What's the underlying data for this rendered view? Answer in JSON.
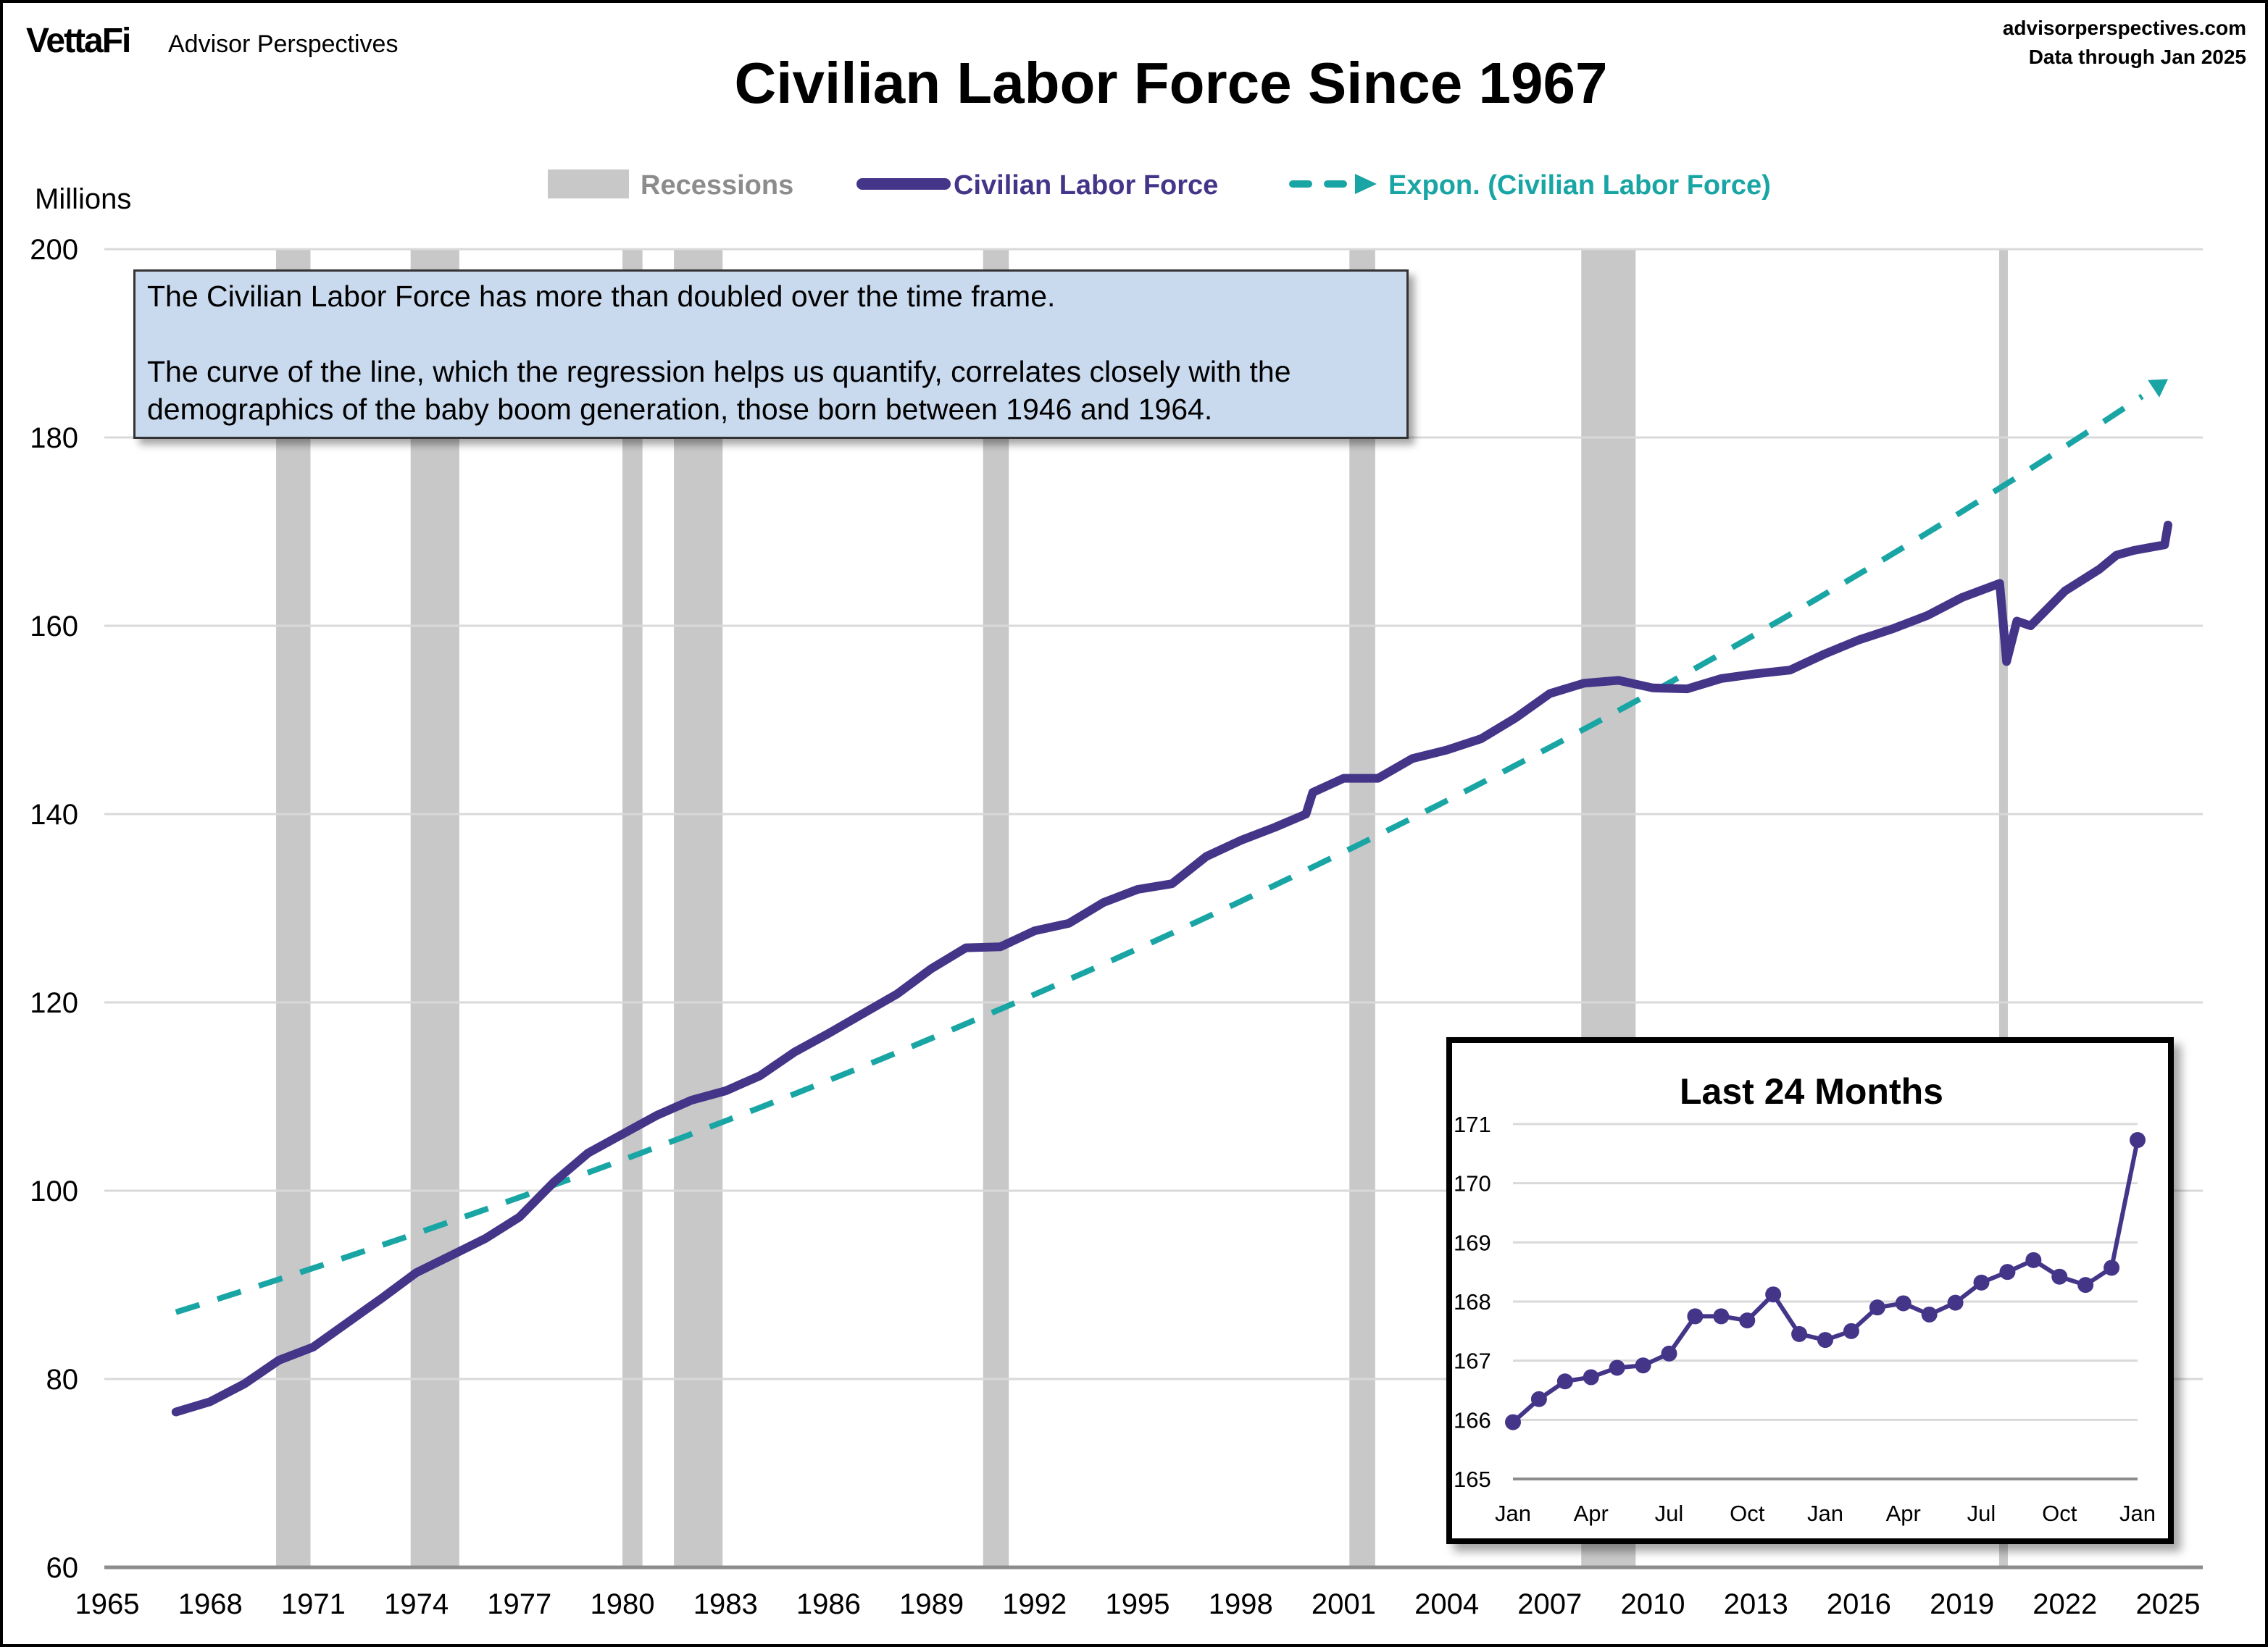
{
  "header": {
    "logo_brand": "VettaFi",
    "logo_sub": "Advisor Perspectives",
    "site": "advisorperspectives.com",
    "data_through": "Data through Jan 2025"
  },
  "annotation": {
    "line1": "The Civilian Labor Force has more than doubled over the time frame.",
    "line2": "The curve of the line, which the regression helps us quantify, correlates closely with the demographics of the baby boom generation, those born between 1946 and 1964."
  },
  "colors": {
    "line": "#453589",
    "trend": "#1aa5a5",
    "recession": "#c8c8c8",
    "grid": "#d9d9d9",
    "axis": "#8c8c8c",
    "note_fill": "#c9d9ee"
  },
  "chart_data": [
    {
      "type": "line",
      "title": "Civilian Labor Force Since 1967",
      "ylabel": "Millions",
      "xlim": [
        1965,
        2025
      ],
      "ylim": [
        60,
        200
      ],
      "yticks": [
        60,
        80,
        100,
        120,
        140,
        160,
        180,
        200
      ],
      "xticks": [
        1965,
        1968,
        1971,
        1974,
        1977,
        1980,
        1983,
        1986,
        1989,
        1992,
        1995,
        1998,
        2001,
        2004,
        2007,
        2010,
        2013,
        2016,
        2019,
        2022,
        2025
      ],
      "grid": true,
      "legend": {
        "placement": "top",
        "entries": [
          "Recessions",
          "Civilian Labor Force",
          "Expon. (Civilian Labor Force)"
        ]
      },
      "recessions": [
        [
          "1969-12",
          "1970-11"
        ],
        [
          "1973-11",
          "1975-03"
        ],
        [
          "1980-01",
          "1980-07"
        ],
        [
          "1981-07",
          "1982-11"
        ],
        [
          "1990-07",
          "1991-03"
        ],
        [
          "2001-03",
          "2001-11"
        ],
        [
          "2007-12",
          "2009-06"
        ],
        [
          "2020-02",
          "2020-04"
        ]
      ],
      "series": [
        {
          "name": "Civilian Labor Force",
          "x": [
            1967,
            1968,
            1969,
            1970,
            1971,
            1972,
            1973,
            1974,
            1975,
            1976,
            1977,
            1978,
            1979,
            1980,
            1981,
            1982,
            1983,
            1984,
            1985,
            1986,
            1987,
            1988,
            1989,
            1990,
            1991,
            1992,
            1993,
            1994,
            1995,
            1996,
            1997,
            1998,
            1999,
            1999.9,
            2000.1,
            2001,
            2002,
            2003,
            2004,
            2005,
            2006,
            2007,
            2008,
            2009,
            2010,
            2011,
            2012,
            2013,
            2014,
            2015,
            2016,
            2017,
            2018,
            2019,
            2020.1,
            2020.3,
            2020.6,
            2021,
            2022,
            2023,
            2023.5,
            2024,
            2024.9,
            2025
          ],
          "y": [
            76.5,
            77.6,
            79.5,
            82.0,
            83.4,
            86.0,
            88.6,
            91.3,
            93.1,
            94.9,
            97.2,
            100.9,
            104.0,
            106.0,
            108.0,
            109.6,
            110.6,
            112.2,
            114.7,
            116.7,
            118.8,
            120.9,
            123.6,
            125.8,
            125.9,
            127.6,
            128.4,
            130.6,
            132.0,
            132.6,
            135.5,
            137.2,
            138.6,
            140.0,
            142.3,
            143.8,
            143.8,
            145.9,
            146.8,
            148.0,
            150.2,
            152.8,
            153.9,
            154.2,
            153.4,
            153.3,
            154.4,
            154.9,
            155.3,
            157.0,
            158.5,
            159.7,
            161.1,
            163.0,
            164.5,
            156.2,
            160.5,
            160.0,
            163.7,
            166.0,
            167.5,
            168.0,
            168.6,
            170.7
          ]
        }
      ],
      "trend": {
        "name": "Expon. (Civilian Labor Force)",
        "type": "exponential",
        "x": [
          1967,
          2025
        ],
        "y": [
          87.1,
          186.2
        ]
      }
    },
    {
      "type": "line",
      "title": "Last 24 Months",
      "ylim": [
        165,
        171
      ],
      "yticks": [
        165,
        166,
        167,
        168,
        169,
        170,
        171
      ],
      "xticks": [
        "Jan",
        "Apr",
        "Jul",
        "Oct",
        "Jan",
        "Apr",
        "Jul",
        "Oct",
        "Jan"
      ],
      "grid": true,
      "series": [
        {
          "values": [
            165.96,
            166.35,
            166.65,
            166.72,
            166.88,
            166.92,
            167.12,
            167.75,
            167.75,
            167.68,
            168.12,
            167.45,
            167.35,
            167.5,
            167.9,
            167.97,
            167.78,
            167.98,
            168.32,
            168.5,
            168.7,
            168.42,
            168.28,
            168.57,
            170.73
          ]
        }
      ]
    }
  ]
}
